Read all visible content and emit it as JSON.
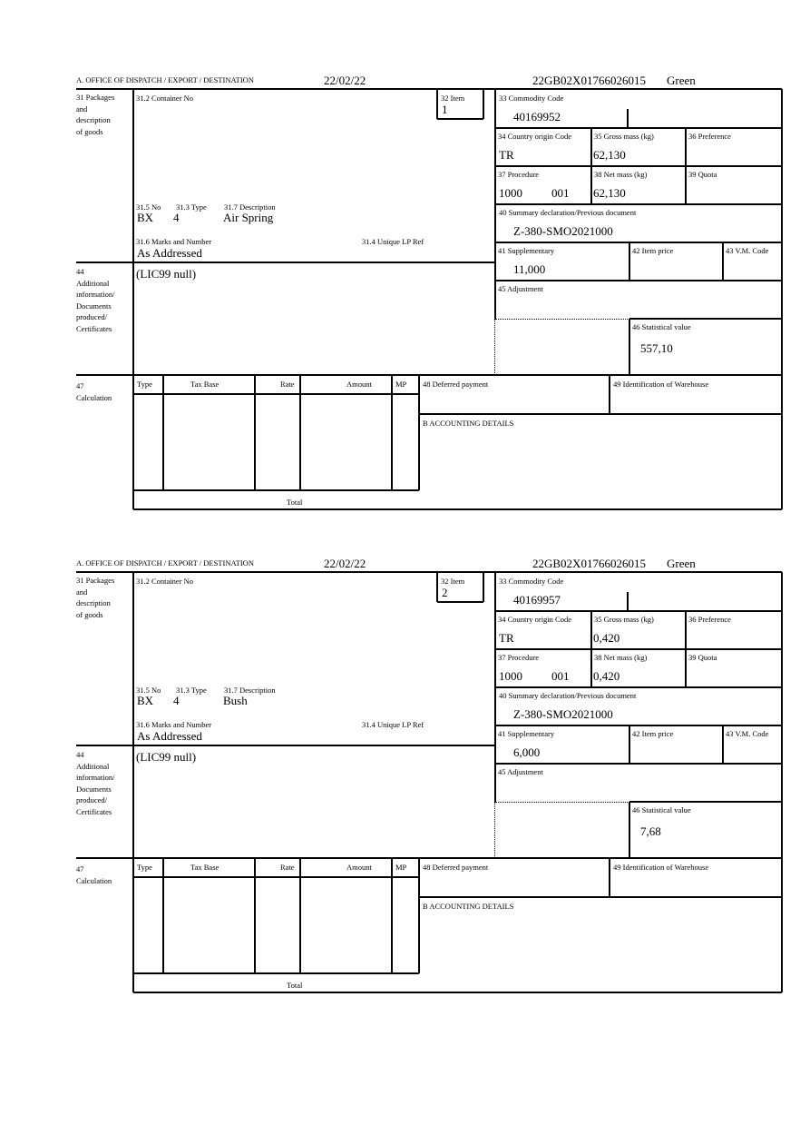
{
  "labels": {
    "office": "A.  OFFICE OF DISPATCH / EXPORT / DESTINATION",
    "packages": "31 Packages\nand\ndescription\nof goods",
    "container": "31.2 Container No",
    "item": "32 Item",
    "no": "31.5 No",
    "type": "31.3 Type",
    "description": "31.7 Description",
    "marks": "31.6 Marks and Number",
    "unique_ref": "31.4 Unique LP Ref",
    "additional": "44\nAdditional\ninformation/\nDocuments\nproduced/\nCertificates",
    "commodity": "33 Commodity Code",
    "country": "34 Country origin Code",
    "gross": "35 Gross mass (kg)",
    "preference": "36 Preference",
    "procedure": "37 Procedure",
    "net": "38 Net mass (kg)",
    "quota": "39 Quota",
    "summary": "40 Summary declaration/Previous document",
    "supplementary": "41 Supplementary",
    "item_price": "42 Item price",
    "vm_code": "43 V.M. Code",
    "adjustment": "45 Adjustment",
    "statistical": "46 Statistical value",
    "calculation": "47\nCalculation",
    "calc_type": "Type",
    "calc_tax_base": "Tax Base",
    "calc_rate": "Rate",
    "calc_amount": "Amount",
    "calc_mp": "MP",
    "total": "Total",
    "deferred": "48 Deferred payment",
    "warehouse": "49 Identification of Warehouse",
    "accounting": "B ACCOUNTING DETAILS"
  },
  "forms": [
    {
      "date": "22/02/22",
      "reference": "22GB02X01766026015",
      "route": "Green",
      "item": "1",
      "package_kind": "BX",
      "package_count": "4",
      "description": "Air Spring",
      "marks": "As Addressed",
      "additional_info": "(LIC99 null)",
      "commodity_code": "40169952",
      "country": "TR",
      "gross_mass": "62,130",
      "procedure": "1000",
      "procedure_extra": "001",
      "net_mass": "62,130",
      "summary": "Z-380-SMO2021000",
      "supplementary": "11,000",
      "statistical_value": "557,10"
    },
    {
      "date": "22/02/22",
      "reference": "22GB02X01766026015",
      "route": "Green",
      "item": "2",
      "package_kind": "BX",
      "package_count": "4",
      "description": "Bush",
      "marks": "As Addressed",
      "additional_info": "(LIC99 null)",
      "commodity_code": "40169957",
      "country": "TR",
      "gross_mass": "0,420",
      "procedure": "1000",
      "procedure_extra": "001",
      "net_mass": "0,420",
      "summary": "Z-380-SMO2021000",
      "supplementary": "6,000",
      "statistical_value": "7,68"
    }
  ]
}
